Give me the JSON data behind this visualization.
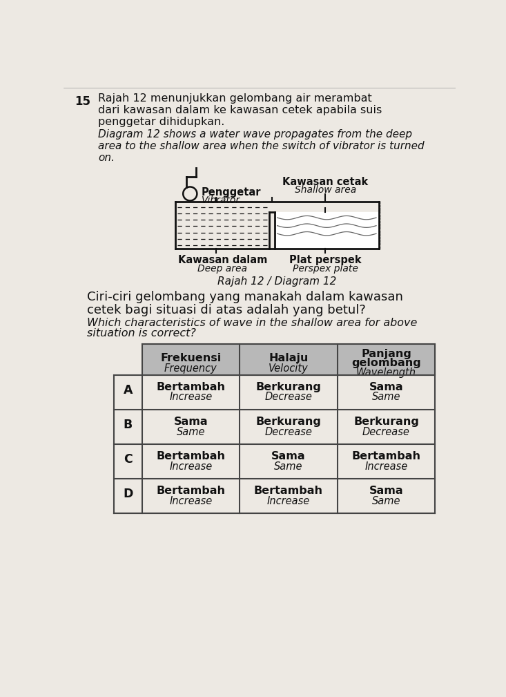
{
  "question_number": "15",
  "text_line1": "Rajah 12 menunjukkan gelombang air merambat",
  "text_line2": "dari kawasan dalam ke kawasan cetek apabila suis",
  "text_line3": "penggetar dihidupkan.",
  "text_line4_italic": "Diagram 12 shows a water wave propagates from the deep",
  "text_line5_italic": "area to the shallow area when the switch of vibrator is turned",
  "text_line6_italic": "on.",
  "diagram_caption": "Rajah 12 / Diagram 12",
  "question_malay": "Ciri-ciri gelombang yang manakah dalam kawasan",
  "question_malay2": "cetek bagi situasi di atas adalah yang betul?",
  "question_english_italic": "Which characteristics of wave in the shallow area for above",
  "question_english_italic2": "situation is correct?",
  "label_penggetar": "Penggetar",
  "label_vibrator_italic": "Vibrator",
  "label_kawasan_cetak": "Kawasan cetak",
  "label_shallow_area_italic": "Shallow area",
  "label_kawasan_dalam": "Kawasan dalam",
  "label_deep_area_italic": "Deep area",
  "label_plat": "Plat perspek",
  "label_perspex_italic": "Perspex plate",
  "header_col1_bold": "Frekuensi",
  "header_col1_italic": "Frequency",
  "header_col2_bold": "Halaju",
  "header_col2_italic": "Velocity",
  "header_col3_bold1": "Panjang",
  "header_col3_bold2": "gelombang",
  "header_col3_italic": "Wavelength",
  "table_rows": [
    [
      "A",
      "Bertambah",
      "Increase",
      "Berkurang",
      "Decrease",
      "Sama",
      "Same"
    ],
    [
      "B",
      "Sama",
      "Same",
      "Berkurang",
      "Decrease",
      "Berkurang",
      "Decrease"
    ],
    [
      "C",
      "Bertambah",
      "Increase",
      "Sama",
      "Same",
      "Bertambah",
      "Increase"
    ],
    [
      "D",
      "Bertambah",
      "Increase",
      "Bertambah",
      "Increase",
      "Sama",
      "Same"
    ]
  ],
  "header_bg": "#b8b8b8",
  "bg_color": "#ede9e3",
  "table_line_color": "#444444",
  "text_color": "#111111",
  "white": "#ffffff"
}
